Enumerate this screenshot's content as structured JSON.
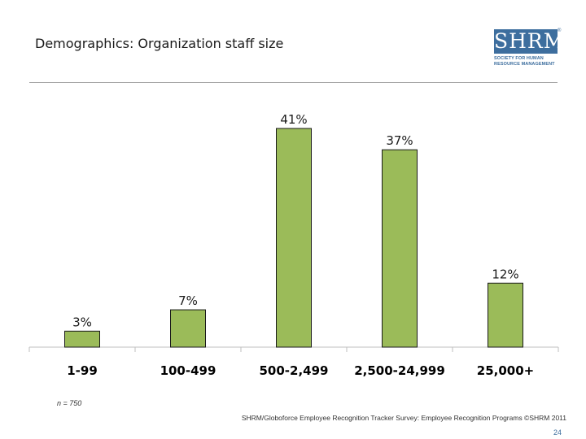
{
  "slide": {
    "title": "Demographics: Organization staff size",
    "note": "n = 750",
    "source": "SHRM/Globoforce Employee Recognition Tracker Survey: Employee Recognition Programs ©SHRM 2011",
    "page_number": "24"
  },
  "logo": {
    "name": "SHRM",
    "reg_mark": "®",
    "subtitle_line1": "SOCIETY FOR HUMAN",
    "subtitle_line2": "RESOURCE MANAGEMENT",
    "color": "#3d6e9e"
  },
  "chart_data": {
    "type": "bar",
    "categories": [
      "1-99",
      "100-499",
      "500-2,499",
      "2,500-24,999",
      "25,000+"
    ],
    "values": [
      3,
      7,
      41,
      37,
      12
    ],
    "data_labels": [
      "3%",
      "7%",
      "41%",
      "37%",
      "12%"
    ],
    "title": "",
    "xlabel": "",
    "ylabel": "",
    "ylim": [
      0,
      41
    ],
    "grid": false,
    "legend": "none",
    "bar_color": "#9bbb59",
    "bar_edge_color": "#1a1a1a"
  }
}
